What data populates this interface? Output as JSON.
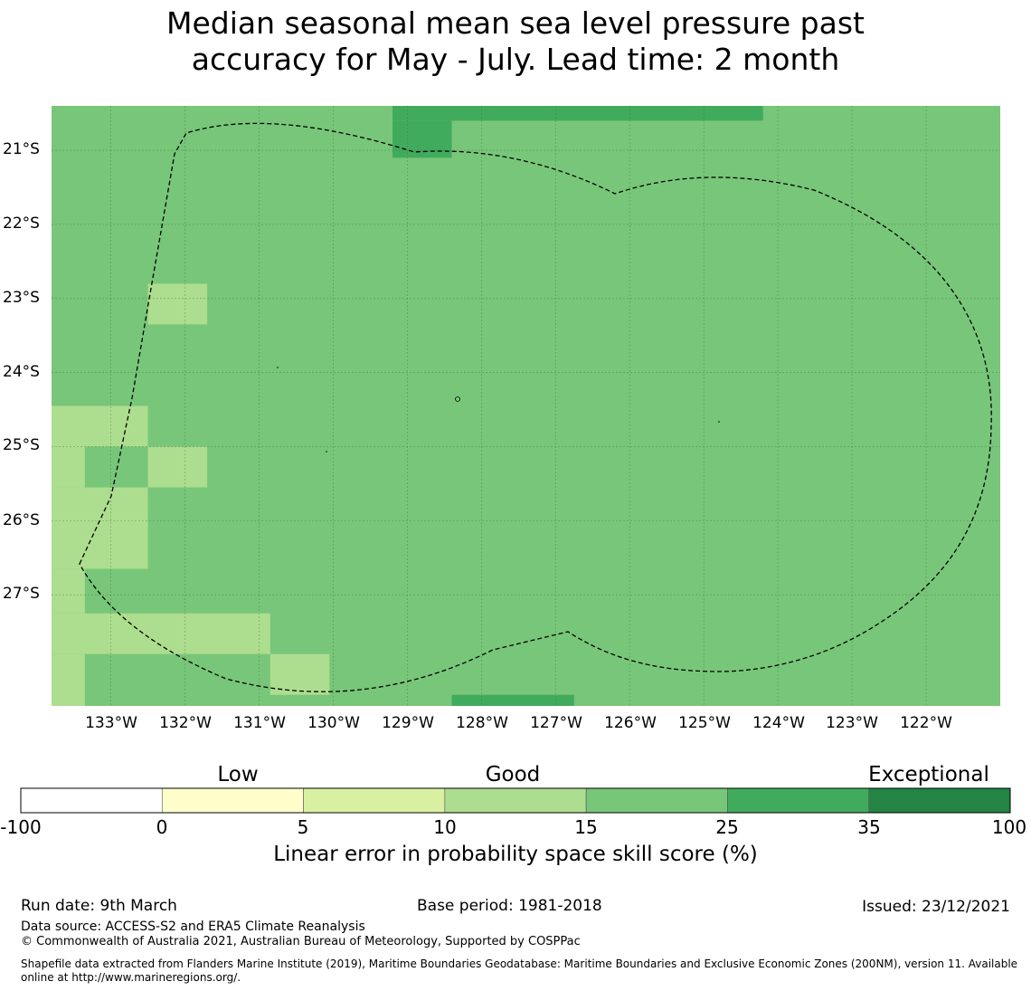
{
  "title": {
    "line1": "Median seasonal mean sea level pressure past",
    "line2": "accuracy for May - July. Lead time: 2 month"
  },
  "map": {
    "lat_labels": [
      "21°S",
      "22°S",
      "23°S",
      "24°S",
      "25°S",
      "26°S",
      "27°S"
    ],
    "lon_labels": [
      "133°W",
      "132°W",
      "131°W",
      "130°W",
      "129°W",
      "128°W",
      "127°W",
      "126°W",
      "125°W",
      "124°W",
      "123°W",
      "122°W"
    ],
    "background_category": "15-25",
    "cells": [
      {
        "lon": [
          -132.5,
          -131.7
        ],
        "lat": [
          -22.8,
          -23.35
        ],
        "category": "10-15"
      },
      {
        "lon": [
          -133.8,
          -132.5
        ],
        "lat": [
          -24.45,
          -25.0
        ],
        "category": "10-15"
      },
      {
        "lon": [
          -133.8,
          -133.35
        ],
        "lat": [
          -25.0,
          -25.55
        ],
        "category": "10-15"
      },
      {
        "lon": [
          -132.5,
          -131.7
        ],
        "lat": [
          -25.0,
          -25.55
        ],
        "category": "10-15"
      },
      {
        "lon": [
          -133.8,
          -132.5
        ],
        "lat": [
          -25.55,
          -26.65
        ],
        "category": "10-15"
      },
      {
        "lon": [
          -133.8,
          -133.35
        ],
        "lat": [
          -26.65,
          -27.25
        ],
        "category": "10-15"
      },
      {
        "lon": [
          -133.8,
          -130.85
        ],
        "lat": [
          -27.25,
          -27.8
        ],
        "category": "10-15"
      },
      {
        "lon": [
          -133.8,
          -133.35
        ],
        "lat": [
          -27.8,
          -28.9
        ],
        "category": "10-15"
      },
      {
        "lon": [
          -130.85,
          -130.05
        ],
        "lat": [
          -27.8,
          -28.35
        ],
        "category": "10-15"
      },
      {
        "lon": [
          -129.2,
          -124.2
        ],
        "lat": [
          -20.4,
          -20.6
        ],
        "category": "25-35"
      },
      {
        "lon": [
          -129.2,
          -128.4
        ],
        "lat": [
          -20.6,
          -21.1
        ],
        "category": "25-35"
      },
      {
        "lon": [
          -128.4,
          -126.75
        ],
        "lat": [
          -28.35,
          -28.55
        ],
        "category": "25-35"
      }
    ]
  },
  "colorbar": {
    "categories": [
      "Low",
      "Good",
      "Exceptional"
    ],
    "ticks": [
      "-100",
      "0",
      "5",
      "10",
      "15",
      "25",
      "35",
      "100"
    ],
    "bins": [
      {
        "range": "-100-0",
        "color": "#ffffff"
      },
      {
        "range": "0-5",
        "color": "#ffffcc"
      },
      {
        "range": "5-10",
        "color": "#d9f0a3"
      },
      {
        "range": "10-15",
        "color": "#addd8e"
      },
      {
        "range": "15-25",
        "color": "#78c679"
      },
      {
        "range": "25-35",
        "color": "#41ab5d"
      },
      {
        "range": "35-100",
        "color": "#238443"
      }
    ],
    "label": "Linear error in probability space skill score (%)"
  },
  "footer": {
    "run_date": "Run date: 9th March",
    "base_period": "Base period: 1981-2018",
    "issued": "Issued: 23/12/2021",
    "data_source": "Data source: ACCESS-S2 and ERA5 Climate Reanalysis",
    "copyright": "© Commonwealth of Australia 2021, Australian Bureau of Meteorology, Supported by COSPPac",
    "shapefile": "Shapefile data extracted from Flanders Marine Institute (2019), Maritime Boundaries Geodatabase: Maritime Boundaries and Exclusive Economic Zones (200NM), version 11. Available online at http://www.marineregions.org/."
  }
}
